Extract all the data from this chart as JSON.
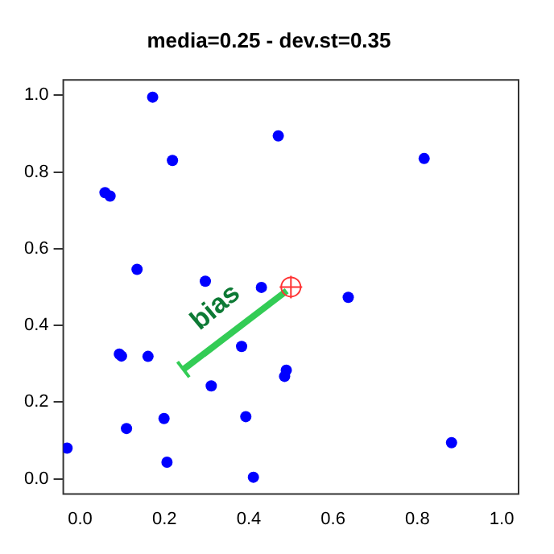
{
  "chart_data": {
    "type": "scatter",
    "title": "media=0.25 - dev.st=0.35",
    "xlim": [
      -0.04,
      1.04
    ],
    "ylim": [
      -0.04,
      1.04
    ],
    "xticks": [
      {
        "value": 0,
        "label": "0.0"
      },
      {
        "value": 0.2,
        "label": "0.2"
      },
      {
        "value": 0.4,
        "label": "0.4"
      },
      {
        "value": 0.6,
        "label": "0.6"
      },
      {
        "value": 0.8,
        "label": "0.8"
      },
      {
        "value": 1,
        "label": "1.0"
      }
    ],
    "yticks": [
      {
        "value": 0,
        "label": "0.0"
      },
      {
        "value": 0.2,
        "label": "0.2"
      },
      {
        "value": 0.4,
        "label": "0.4"
      },
      {
        "value": 0.6,
        "label": "0.6"
      },
      {
        "value": 0.8,
        "label": "0.8"
      },
      {
        "value": 1,
        "label": "1.0"
      }
    ],
    "grid": false,
    "legend": false,
    "series": [
      {
        "color": "#0000ff",
        "marker": "circle",
        "x": [
          0.172,
          0.219,
          0.059,
          0.071,
          0.135,
          0.297,
          0.43,
          0.47,
          0.816,
          0.636,
          0.489,
          0.485,
          0.881,
          0.093,
          0.098,
          0.161,
          0.383,
          0.311,
          0.11,
          0.199,
          0.393,
          -0.031,
          0.206,
          0.411
        ],
        "values": [
          0.995,
          0.83,
          0.746,
          0.737,
          0.546,
          0.515,
          0.499,
          0.894,
          0.835,
          0.473,
          0.283,
          0.267,
          0.094,
          0.325,
          0.32,
          0.319,
          0.345,
          0.242,
          0.131,
          0.157,
          0.162,
          0.08,
          0.043,
          0.004
        ]
      },
      {
        "type": "line",
        "color": "#33cc55",
        "x": [
          0.245,
          0.49
        ],
        "values": [
          0.285,
          0.49
        ]
      },
      {
        "color": "#ff3333",
        "x": [
          0.5
        ],
        "values": [
          0.5
        ],
        "marker": "cross"
      }
    ],
    "annotations": [
      "bias"
    ]
  }
}
